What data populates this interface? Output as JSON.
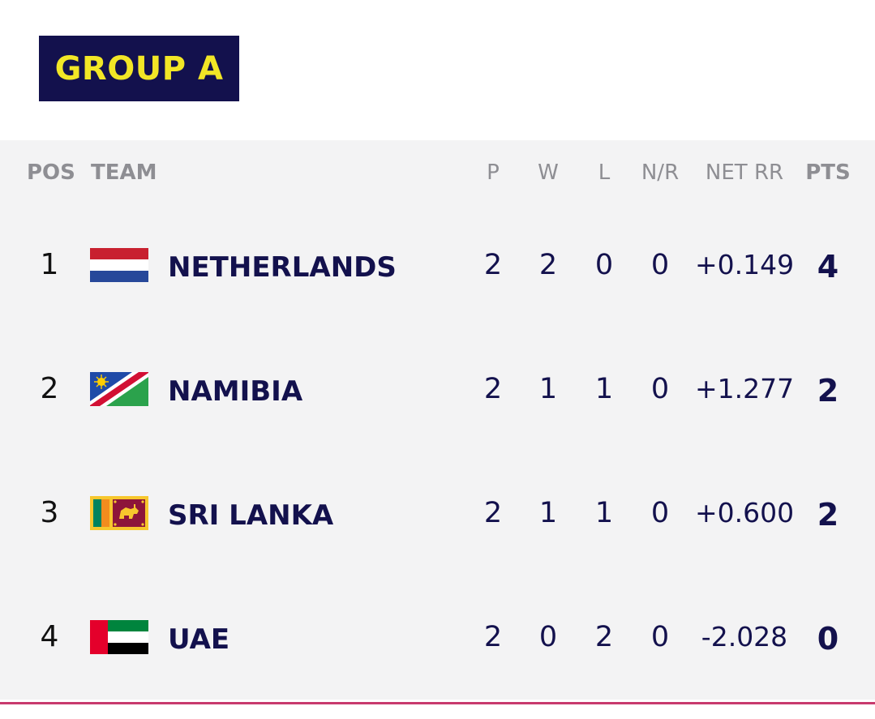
{
  "group_title": "GROUP A",
  "columns": {
    "pos": "POS",
    "team": "TEAM",
    "p": "P",
    "w": "W",
    "l": "L",
    "nr": "N/R",
    "nrr": "NET RR",
    "pts": "PTS"
  },
  "rows": [
    {
      "pos": "1",
      "team": "NETHERLANDS",
      "flag": "netherlands-flag",
      "p": "2",
      "w": "2",
      "l": "0",
      "nr": "0",
      "nrr": "+0.149",
      "pts": "4"
    },
    {
      "pos": "2",
      "team": "NAMIBIA",
      "flag": "namibia-flag",
      "p": "2",
      "w": "1",
      "l": "1",
      "nr": "0",
      "nrr": "+1.277",
      "pts": "2"
    },
    {
      "pos": "3",
      "team": "SRI LANKA",
      "flag": "sri-lanka-flag",
      "p": "2",
      "w": "1",
      "l": "1",
      "nr": "0",
      "nrr": "+0.600",
      "pts": "2"
    },
    {
      "pos": "4",
      "team": "UAE",
      "flag": "uae-flag",
      "p": "2",
      "w": "0",
      "l": "2",
      "nr": "0",
      "nrr": "-2.028",
      "pts": "0"
    }
  ],
  "colors": {
    "navy": "#13114d",
    "yellow": "#f2e626",
    "table_bg": "#f3f3f4",
    "header_text": "#8e8e93",
    "accent_line": "#c83a6e"
  }
}
